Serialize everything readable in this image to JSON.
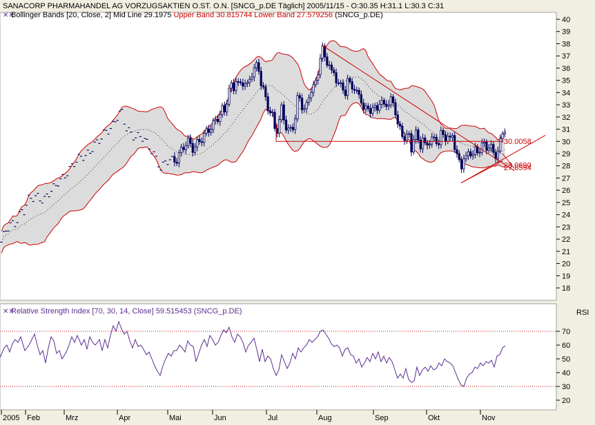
{
  "header": {
    "title": "SANACORP PHARMAHANDEL AG VORZUGSAKTIEN O.ST. O.N. [SNCG_p.DE  Täglich] 2005/11/15 - O:30.35 H:31.1 L:30.3 C:31",
    "bb_prefix": "Bollinger Bands [20, Close, 2] Mid Line 29.1975",
    "bb_upper": "Upper Band 30.815744",
    "bb_lower": "Lower Band 27.579256",
    "bb_suffix": "(SNCG_p.DE)",
    "rsi_text": "Relative Strength Index [70, 30, 14, Close] 59.515453",
    "rsi_suffix": "(SNCG_p.DE)",
    "rsi_axis": "RSI"
  },
  "colors": {
    "background": "#f1efe2",
    "plot_bg": "#ffffff",
    "band_fill": "#dcdcdc",
    "band_line": "#cc0000",
    "candle_up": "#ffffff",
    "candle_down": "#00005a",
    "rsi_line": "#5b2c8f",
    "trend_line": "#cc0000"
  },
  "chart_data": [
    {
      "type": "candlestick",
      "title": "SANACORP PHARMAHANDEL AG VORZUGSAKTIEN O.ST. O.N.",
      "x_tick_labels": [
        "2005",
        "Feb",
        "Mrz",
        "Apr",
        "Mai",
        "Jun",
        "Jul",
        "Aug",
        "Sep",
        "Okt",
        "Nov"
      ],
      "y_ticks": [
        18,
        19,
        20,
        21,
        22,
        23,
        24,
        25,
        26,
        27,
        28,
        29,
        30,
        31,
        32,
        33,
        34,
        35,
        36,
        37,
        38,
        39,
        40
      ],
      "ylim": [
        17.2,
        40.8
      ],
      "close_path": [
        [
          0,
          21.5
        ],
        [
          8,
          22.5
        ],
        [
          16,
          23.1
        ],
        [
          22,
          23.4
        ],
        [
          28,
          24.1
        ],
        [
          32,
          24.4
        ],
        [
          36,
          24.3
        ],
        [
          40,
          25.0
        ],
        [
          48,
          25.3
        ],
        [
          56,
          25.6
        ],
        [
          64,
          25.3
        ],
        [
          72,
          25.7
        ],
        [
          80,
          26.1
        ],
        [
          86,
          26.9
        ],
        [
          92,
          27.2
        ],
        [
          98,
          27.6
        ],
        [
          104,
          27.8
        ],
        [
          110,
          28.2
        ],
        [
          120,
          28.9
        ],
        [
          130,
          29.2
        ],
        [
          136,
          29.6
        ],
        [
          142,
          29.7
        ],
        [
          150,
          30.6
        ],
        [
          156,
          31.1
        ],
        [
          164,
          31.4
        ],
        [
          170,
          31.9
        ],
        [
          176,
          32.3
        ],
        [
          182,
          31.2
        ],
        [
          190,
          30.8
        ],
        [
          198,
          30.4
        ],
        [
          206,
          30.2
        ],
        [
          214,
          29.7
        ],
        [
          220,
          29.4
        ],
        [
          228,
          28.6
        ],
        [
          234,
          27.6
        ],
        [
          240,
          28.2
        ],
        [
          248,
          28.4
        ],
        [
          256,
          28.7
        ],
        [
          264,
          29.5
        ],
        [
          272,
          29.8
        ],
        [
          280,
          29.3
        ],
        [
          288,
          30.2
        ],
        [
          296,
          30.6
        ],
        [
          304,
          30.9
        ],
        [
          310,
          31.3
        ],
        [
          314,
          31.8
        ],
        [
          318,
          32.3
        ],
        [
          322,
          32.8
        ],
        [
          326,
          32.6
        ],
        [
          330,
          33.9
        ],
        [
          334,
          34.5
        ],
        [
          338,
          34.0
        ],
        [
          342,
          35.0
        ],
        [
          346,
          34.4
        ],
        [
          350,
          34.8
        ],
        [
          354,
          35.2
        ],
        [
          358,
          34.6
        ],
        [
          364,
          35.5
        ],
        [
          368,
          35.8
        ],
        [
          374,
          36.0
        ],
        [
          378,
          34.8
        ],
        [
          382,
          34.2
        ],
        [
          386,
          33.3
        ],
        [
          390,
          32.7
        ],
        [
          394,
          32.6
        ],
        [
          396,
          31.3
        ],
        [
          400,
          30.6
        ],
        [
          404,
          31.4
        ],
        [
          408,
          32.5
        ],
        [
          412,
          31.6
        ],
        [
          416,
          31.1
        ],
        [
          420,
          31.0
        ],
        [
          424,
          31.3
        ],
        [
          428,
          32.2
        ],
        [
          432,
          33.8
        ],
        [
          436,
          32.9
        ],
        [
          440,
          32.5
        ],
        [
          444,
          32.7
        ],
        [
          448,
          33.8
        ],
        [
          452,
          34.8
        ],
        [
          456,
          34.6
        ],
        [
          460,
          35.4
        ],
        [
          462,
          36.4
        ],
        [
          464,
          37.0
        ],
        [
          466,
          37.7
        ],
        [
          468,
          37.2
        ],
        [
          472,
          36.2
        ],
        [
          476,
          36.6
        ],
        [
          480,
          35.5
        ],
        [
          484,
          35.8
        ],
        [
          488,
          35.2
        ],
        [
          492,
          34.6
        ],
        [
          496,
          34.5
        ],
        [
          500,
          33.8
        ],
        [
          504,
          34.8
        ],
        [
          508,
          34.4
        ],
        [
          512,
          34.6
        ],
        [
          516,
          34.0
        ],
        [
          520,
          34.0
        ],
        [
          524,
          33.6
        ],
        [
          528,
          32.2
        ],
        [
          532,
          32.8
        ],
        [
          536,
          32.4
        ],
        [
          540,
          32.4
        ],
        [
          546,
          32.8
        ],
        [
          550,
          33.4
        ],
        [
          556,
          33.1
        ],
        [
          560,
          33.3
        ],
        [
          564,
          32.8
        ],
        [
          568,
          33.4
        ],
        [
          574,
          32.1
        ],
        [
          576,
          31.2
        ],
        [
          580,
          31.0
        ],
        [
          584,
          30.7
        ],
        [
          588,
          30.3
        ],
        [
          592,
          30.8
        ],
        [
          596,
          29.4
        ],
        [
          600,
          30.2
        ],
        [
          604,
          30.5
        ],
        [
          608,
          29.4
        ],
        [
          612,
          30.3
        ],
        [
          616,
          29.7
        ],
        [
          620,
          30.2
        ],
        [
          624,
          30.2
        ],
        [
          628,
          30.1
        ],
        [
          632,
          30.0
        ],
        [
          636,
          29.6
        ],
        [
          640,
          30.7
        ],
        [
          644,
          30.3
        ],
        [
          648,
          30.6
        ],
        [
          652,
          30.2
        ],
        [
          656,
          30.9
        ],
        [
          660,
          29.1
        ],
        [
          664,
          28.3
        ],
        [
          668,
          27.7
        ],
        [
          672,
          28.6
        ],
        [
          676,
          28.4
        ],
        [
          680,
          29.6
        ],
        [
          684,
          29.0
        ],
        [
          688,
          29.4
        ],
        [
          692,
          29.2
        ],
        [
          696,
          29.4
        ],
        [
          700,
          29.6
        ],
        [
          704,
          29.3
        ],
        [
          708,
          29.6
        ],
        [
          712,
          29.5
        ],
        [
          716,
          29.0
        ],
        [
          720,
          29.2
        ],
        [
          724,
          29.8
        ],
        [
          728,
          30.6
        ],
        [
          732,
          31.0
        ]
      ],
      "annotations": [
        "30.0058",
        "27.8594",
        "28.0690"
      ]
    },
    {
      "type": "line",
      "title": "Relative Strength Index [70, 30, 14, Close] 59.515453",
      "y_ticks": [
        20,
        30,
        40,
        50,
        60,
        70
      ],
      "ylim": [
        17,
        77
      ],
      "reference_lines": [
        70,
        30
      ],
      "close_path": [
        [
          0,
          51
        ],
        [
          6,
          58
        ],
        [
          10,
          60
        ],
        [
          14,
          55
        ],
        [
          18,
          61
        ],
        [
          22,
          64
        ],
        [
          26,
          62
        ],
        [
          30,
          66
        ],
        [
          36,
          56
        ],
        [
          42,
          60
        ],
        [
          46,
          64
        ],
        [
          50,
          68
        ],
        [
          54,
          60
        ],
        [
          58,
          53
        ],
        [
          62,
          56
        ],
        [
          66,
          47
        ],
        [
          70,
          58
        ],
        [
          74,
          66
        ],
        [
          78,
          63
        ],
        [
          82,
          54
        ],
        [
          86,
          56
        ],
        [
          90,
          50
        ],
        [
          96,
          55
        ],
        [
          100,
          60
        ],
        [
          104,
          66
        ],
        [
          108,
          62
        ],
        [
          112,
          67
        ],
        [
          118,
          60
        ],
        [
          122,
          64
        ],
        [
          126,
          57
        ],
        [
          130,
          66
        ],
        [
          134,
          62
        ],
        [
          138,
          60
        ],
        [
          144,
          64
        ],
        [
          148,
          56
        ],
        [
          152,
          64
        ],
        [
          156,
          58
        ],
        [
          160,
          67
        ],
        [
          164,
          74
        ],
        [
          168,
          70
        ],
        [
          172,
          77
        ],
        [
          176,
          72
        ],
        [
          180,
          68
        ],
        [
          184,
          70
        ],
        [
          188,
          63
        ],
        [
          192,
          58
        ],
        [
          196,
          64
        ],
        [
          200,
          59
        ],
        [
          204,
          60
        ],
        [
          208,
          57
        ],
        [
          212,
          53
        ],
        [
          216,
          55
        ],
        [
          220,
          50
        ],
        [
          224,
          45
        ],
        [
          228,
          41
        ],
        [
          232,
          38
        ],
        [
          236,
          45
        ],
        [
          240,
          50
        ],
        [
          244,
          54
        ],
        [
          248,
          52
        ],
        [
          252,
          56
        ],
        [
          256,
          56
        ],
        [
          260,
          60
        ],
        [
          264,
          58
        ],
        [
          268,
          55
        ],
        [
          272,
          63
        ],
        [
          276,
          60
        ],
        [
          280,
          59
        ],
        [
          284,
          48
        ],
        [
          288,
          54
        ],
        [
          292,
          60
        ],
        [
          296,
          64
        ],
        [
          300,
          59
        ],
        [
          304,
          67
        ],
        [
          308,
          64
        ],
        [
          312,
          60
        ],
        [
          316,
          62
        ],
        [
          320,
          67
        ],
        [
          324,
          71
        ],
        [
          328,
          69
        ],
        [
          332,
          73
        ],
        [
          336,
          66
        ],
        [
          340,
          62
        ],
        [
          344,
          68
        ],
        [
          348,
          66
        ],
        [
          352,
          62
        ],
        [
          356,
          55
        ],
        [
          360,
          60
        ],
        [
          364,
          62
        ],
        [
          368,
          65
        ],
        [
          372,
          57
        ],
        [
          376,
          48
        ],
        [
          380,
          57
        ],
        [
          384,
          48
        ],
        [
          388,
          52
        ],
        [
          392,
          50
        ],
        [
          396,
          43
        ],
        [
          400,
          38
        ],
        [
          404,
          42
        ],
        [
          408,
          53
        ],
        [
          412,
          48
        ],
        [
          416,
          43
        ],
        [
          420,
          47
        ],
        [
          424,
          54
        ],
        [
          428,
          50
        ],
        [
          432,
          58
        ],
        [
          436,
          55
        ],
        [
          440,
          58
        ],
        [
          444,
          60
        ],
        [
          448,
          64
        ],
        [
          452,
          62
        ],
        [
          456,
          64
        ],
        [
          460,
          66
        ],
        [
          464,
          70
        ],
        [
          468,
          71
        ],
        [
          472,
          68
        ],
        [
          476,
          65
        ],
        [
          480,
          61
        ],
        [
          484,
          59
        ],
        [
          488,
          60
        ],
        [
          492,
          58
        ],
        [
          496,
          52
        ],
        [
          500,
          57
        ],
        [
          504,
          58
        ],
        [
          508,
          53
        ],
        [
          512,
          52
        ],
        [
          516,
          47
        ],
        [
          520,
          50
        ],
        [
          524,
          44
        ],
        [
          528,
          47
        ],
        [
          532,
          51
        ],
        [
          536,
          48
        ],
        [
          540,
          54
        ],
        [
          544,
          50
        ],
        [
          548,
          55
        ],
        [
          552,
          48
        ],
        [
          556,
          52
        ],
        [
          560,
          47
        ],
        [
          564,
          51
        ],
        [
          568,
          48
        ],
        [
          572,
          42
        ],
        [
          576,
          36
        ],
        [
          580,
          39
        ],
        [
          584,
          36
        ],
        [
          588,
          43
        ],
        [
          592,
          35
        ],
        [
          596,
          33
        ],
        [
          600,
          34
        ],
        [
          604,
          44
        ],
        [
          608,
          38
        ],
        [
          612,
          42
        ],
        [
          616,
          44
        ],
        [
          620,
          41
        ],
        [
          624,
          45
        ],
        [
          628,
          42
        ],
        [
          632,
          43
        ],
        [
          636,
          47
        ],
        [
          640,
          45
        ],
        [
          644,
          50
        ],
        [
          648,
          48
        ],
        [
          652,
          47
        ],
        [
          656,
          45
        ],
        [
          660,
          40
        ],
        [
          664,
          35
        ],
        [
          668,
          31
        ],
        [
          672,
          30
        ],
        [
          676,
          36
        ],
        [
          680,
          39
        ],
        [
          684,
          40
        ],
        [
          688,
          44
        ],
        [
          692,
          43
        ],
        [
          696,
          47
        ],
        [
          700,
          45
        ],
        [
          704,
          48
        ],
        [
          708,
          47
        ],
        [
          712,
          49
        ],
        [
          716,
          44
        ],
        [
          720,
          52
        ],
        [
          724,
          53
        ],
        [
          728,
          58
        ],
        [
          732,
          59.5
        ]
      ]
    }
  ]
}
